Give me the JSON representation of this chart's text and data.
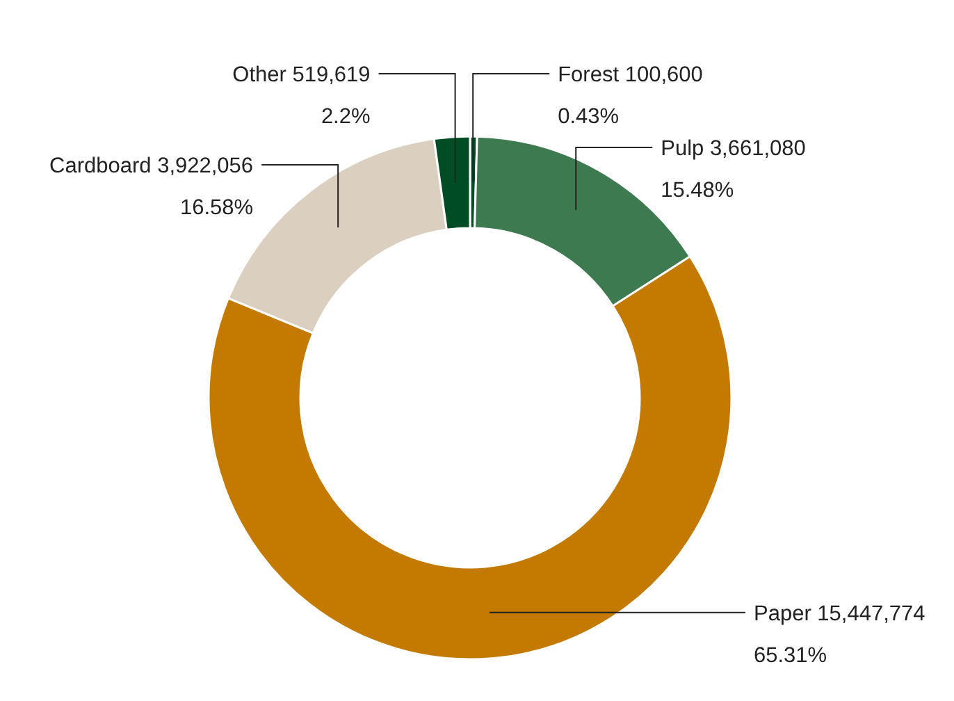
{
  "chart_data": {
    "type": "donut",
    "categories": [
      "Forest 100,600",
      "Pulp 3,661,080",
      "Paper 15,447,774",
      "Cardboard 3,922,056",
      "Other 519,619"
    ],
    "values": [
      0.43,
      15.48,
      65.31,
      16.58,
      2.2
    ],
    "colors": [
      "#004d25",
      "#3d7a50",
      "#c47a00",
      "#dbd0c0",
      "#004d25"
    ],
    "value_labels": [
      "0.43%",
      "15.48%",
      "65.31%",
      "16.58%",
      "2.2%"
    ]
  }
}
